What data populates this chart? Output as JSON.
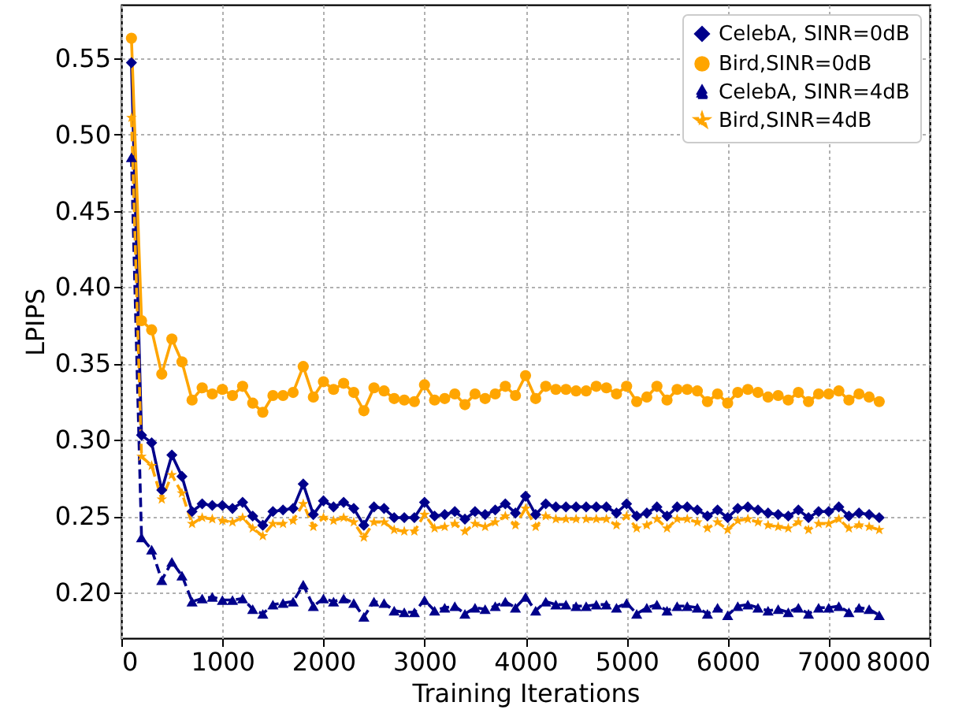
{
  "chart_data": {
    "type": "line",
    "xlabel": "Training Iterations",
    "ylabel": "LPIPS",
    "x": [
      100,
      200,
      300,
      400,
      500,
      600,
      700,
      800,
      900,
      1000,
      1100,
      1200,
      1300,
      1400,
      1500,
      1600,
      1700,
      1800,
      1900,
      2000,
      2100,
      2200,
      2300,
      2400,
      2500,
      2600,
      2700,
      2800,
      2900,
      3000,
      3100,
      3200,
      3300,
      3400,
      3500,
      3600,
      3700,
      3800,
      3900,
      4000,
      4100,
      4200,
      4300,
      4400,
      4500,
      4600,
      4700,
      4800,
      4900,
      5000,
      5100,
      5200,
      5300,
      5400,
      5500,
      5600,
      5700,
      5800,
      5900,
      6000,
      6100,
      6200,
      6300,
      6400,
      6500,
      6600,
      6700,
      6800,
      6900,
      7000,
      7100,
      7200,
      7300,
      7400,
      7500
    ],
    "series": [
      {
        "name": "CelebA, SINR=0dB",
        "color": "#00008b",
        "marker": "diamond",
        "line_style": "solid",
        "values": [
          0.547,
          0.303,
          0.298,
          0.267,
          0.29,
          0.276,
          0.253,
          0.258,
          0.257,
          0.257,
          0.255,
          0.259,
          0.25,
          0.244,
          0.253,
          0.254,
          0.255,
          0.271,
          0.251,
          0.26,
          0.256,
          0.259,
          0.255,
          0.244,
          0.256,
          0.255,
          0.249,
          0.249,
          0.249,
          0.259,
          0.25,
          0.251,
          0.253,
          0.248,
          0.253,
          0.251,
          0.254,
          0.258,
          0.252,
          0.263,
          0.251,
          0.258,
          0.256,
          0.256,
          0.256,
          0.256,
          0.256,
          0.256,
          0.252,
          0.258,
          0.25,
          0.252,
          0.256,
          0.25,
          0.256,
          0.256,
          0.254,
          0.25,
          0.254,
          0.249,
          0.255,
          0.256,
          0.254,
          0.252,
          0.251,
          0.25,
          0.254,
          0.249,
          0.253,
          0.253,
          0.256,
          0.25,
          0.252,
          0.251,
          0.249
        ]
      },
      {
        "name": "Bird,SINR=0dB",
        "color": "#ffa500",
        "marker": "circle",
        "line_style": "solid",
        "values": [
          0.563,
          0.378,
          0.372,
          0.343,
          0.366,
          0.351,
          0.326,
          0.334,
          0.33,
          0.333,
          0.329,
          0.335,
          0.324,
          0.318,
          0.329,
          0.329,
          0.331,
          0.348,
          0.328,
          0.338,
          0.333,
          0.337,
          0.331,
          0.319,
          0.334,
          0.332,
          0.327,
          0.326,
          0.325,
          0.336,
          0.326,
          0.327,
          0.33,
          0.323,
          0.33,
          0.327,
          0.33,
          0.335,
          0.329,
          0.342,
          0.327,
          0.335,
          0.333,
          0.333,
          0.332,
          0.332,
          0.335,
          0.334,
          0.33,
          0.335,
          0.325,
          0.328,
          0.335,
          0.326,
          0.333,
          0.333,
          0.332,
          0.325,
          0.33,
          0.324,
          0.331,
          0.333,
          0.331,
          0.328,
          0.329,
          0.326,
          0.331,
          0.325,
          0.33,
          0.33,
          0.332,
          0.326,
          0.33,
          0.328,
          0.325
        ]
      },
      {
        "name": "CelebA, SINR=4dB",
        "color": "#00008b",
        "marker": "triangle",
        "line_style": "dashed",
        "values": [
          0.485,
          0.236,
          0.228,
          0.208,
          0.22,
          0.211,
          0.194,
          0.196,
          0.197,
          0.195,
          0.195,
          0.196,
          0.189,
          0.186,
          0.192,
          0.193,
          0.194,
          0.205,
          0.191,
          0.196,
          0.194,
          0.196,
          0.193,
          0.184,
          0.194,
          0.193,
          0.188,
          0.187,
          0.187,
          0.195,
          0.188,
          0.19,
          0.191,
          0.186,
          0.19,
          0.189,
          0.191,
          0.194,
          0.19,
          0.197,
          0.188,
          0.194,
          0.192,
          0.192,
          0.191,
          0.191,
          0.192,
          0.192,
          0.19,
          0.193,
          0.186,
          0.19,
          0.192,
          0.188,
          0.191,
          0.191,
          0.19,
          0.186,
          0.19,
          0.185,
          0.191,
          0.192,
          0.19,
          0.188,
          0.189,
          0.187,
          0.19,
          0.186,
          0.19,
          0.19,
          0.191,
          0.187,
          0.19,
          0.189,
          0.185
        ]
      },
      {
        "name": "Bird,SINR=4dB",
        "color": "#ffa500",
        "marker": "star",
        "line_style": "dashed",
        "values": [
          0.511,
          0.289,
          0.283,
          0.261,
          0.277,
          0.265,
          0.245,
          0.249,
          0.248,
          0.247,
          0.246,
          0.249,
          0.242,
          0.237,
          0.245,
          0.245,
          0.247,
          0.258,
          0.243,
          0.249,
          0.247,
          0.249,
          0.246,
          0.236,
          0.246,
          0.246,
          0.241,
          0.24,
          0.24,
          0.251,
          0.242,
          0.243,
          0.245,
          0.24,
          0.245,
          0.243,
          0.246,
          0.25,
          0.244,
          0.255,
          0.243,
          0.25,
          0.248,
          0.248,
          0.248,
          0.248,
          0.248,
          0.248,
          0.244,
          0.25,
          0.242,
          0.244,
          0.248,
          0.242,
          0.248,
          0.248,
          0.246,
          0.242,
          0.246,
          0.241,
          0.247,
          0.248,
          0.246,
          0.244,
          0.243,
          0.242,
          0.246,
          0.241,
          0.245,
          0.245,
          0.248,
          0.242,
          0.244,
          0.243,
          0.241
        ]
      }
    ],
    "xlim": [
      0,
      8000
    ],
    "xticks": [
      0,
      1000,
      2000,
      3000,
      4000,
      5000,
      6000,
      7000,
      8000
    ],
    "ylim": [
      0.17,
      0.585
    ],
    "yticks": [
      {
        "value": 0.2,
        "label": "0.20"
      },
      {
        "value": 0.25,
        "label": "0.25"
      },
      {
        "value": 0.3,
        "label": "0.30"
      },
      {
        "value": 0.35,
        "label": "0.35"
      },
      {
        "value": 0.4,
        "label": "0.40"
      },
      {
        "value": 0.45,
        "label": "0.45"
      },
      {
        "value": 0.5,
        "label": "0.50"
      },
      {
        "value": 0.55,
        "label": "0.55"
      }
    ],
    "grid": true,
    "legend": "top right"
  }
}
